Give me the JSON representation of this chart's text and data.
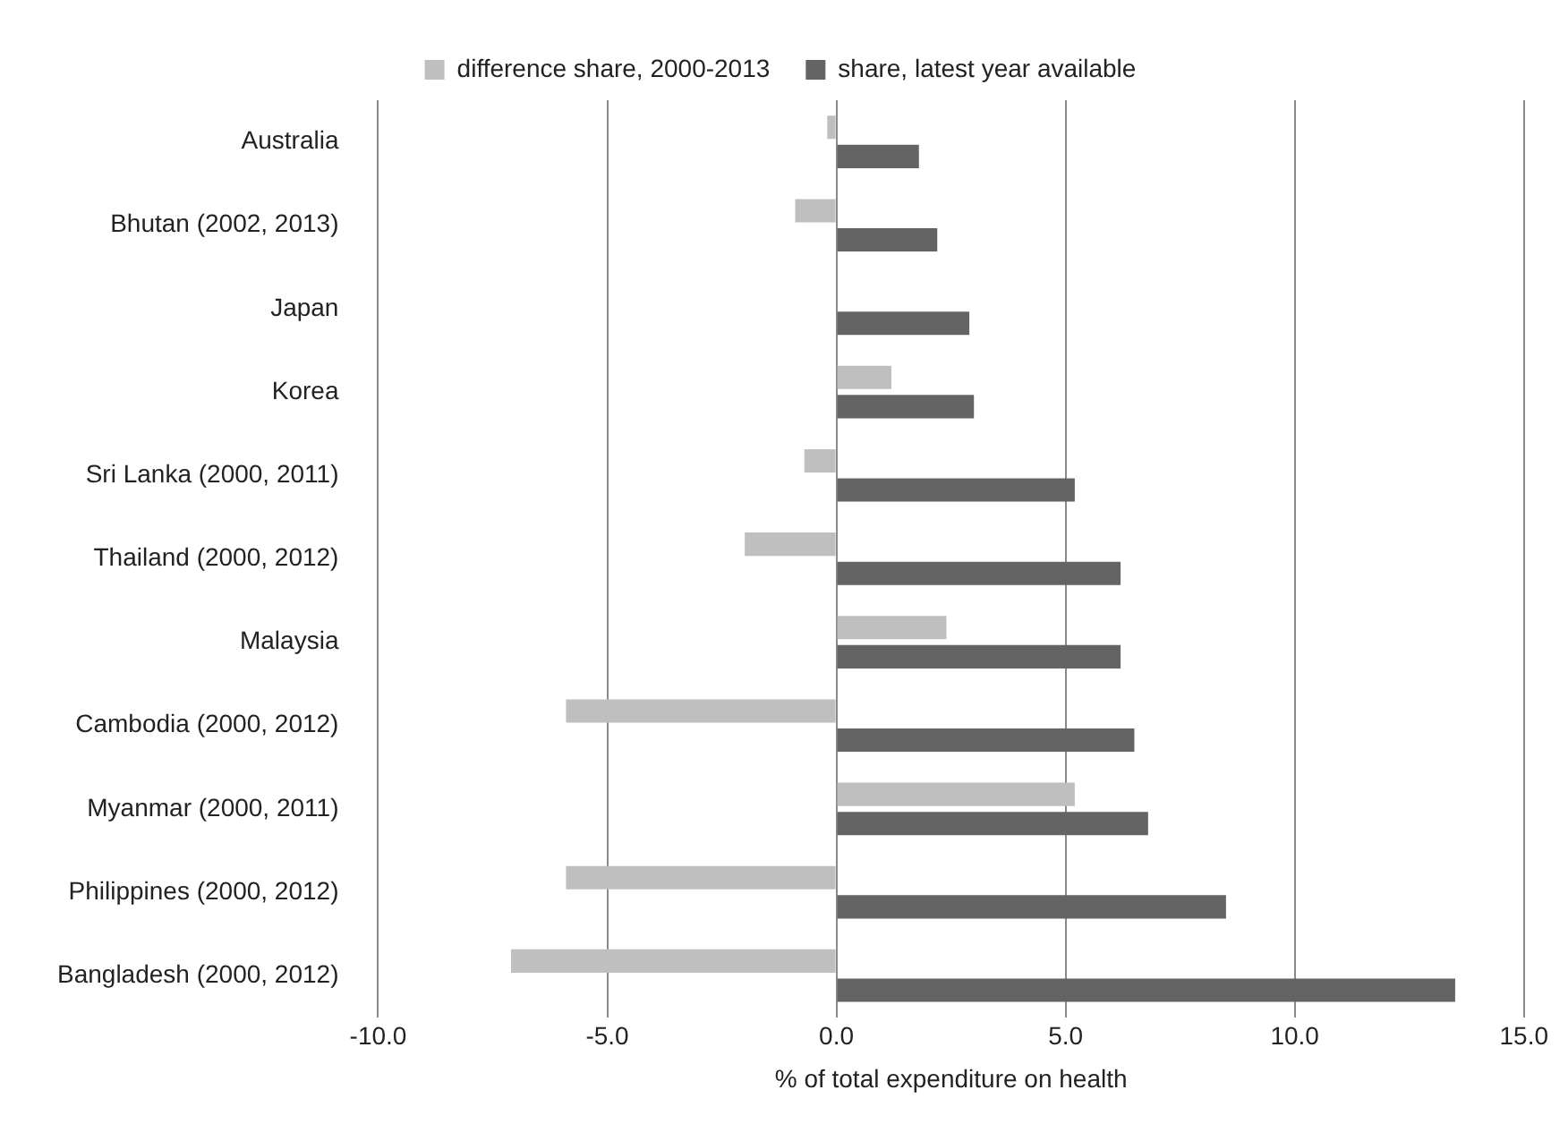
{
  "chart_data": {
    "type": "bar",
    "orientation": "horizontal",
    "xlabel": "% of total expenditure on health",
    "categories": [
      "Australia",
      "Bhutan (2002, 2013)",
      "Japan",
      "Korea",
      "Sri Lanka (2000, 2011)",
      "Thailand (2000, 2012)",
      "Malaysia",
      "Cambodia (2000, 2012)",
      "Myanmar (2000, 2011)",
      "Philippines (2000, 2012)",
      "Bangladesh (2000, 2012)"
    ],
    "series": [
      {
        "name": "difference share, 2000-2013",
        "color": "#bfbfbf",
        "values": [
          -0.2,
          -0.9,
          0,
          1.2,
          -0.7,
          -2.0,
          2.4,
          -5.9,
          5.2,
          -5.9,
          -7.1
        ]
      },
      {
        "name": "share, latest year available",
        "color": "#646464",
        "values": [
          1.8,
          2.2,
          2.9,
          3.0,
          5.2,
          6.2,
          6.2,
          6.5,
          6.8,
          8.5,
          13.5
        ]
      }
    ],
    "xlim": [
      -10,
      15
    ],
    "xticks": [
      {
        "value": -10,
        "label": "-10.0"
      },
      {
        "value": -5,
        "label": "-5.0"
      },
      {
        "value": 0,
        "label": "0.0"
      },
      {
        "value": 5,
        "label": "5.0"
      },
      {
        "value": 10,
        "label": "10.0"
      },
      {
        "value": 15,
        "label": "15.0"
      }
    ],
    "grid": "x",
    "legend": "top"
  }
}
